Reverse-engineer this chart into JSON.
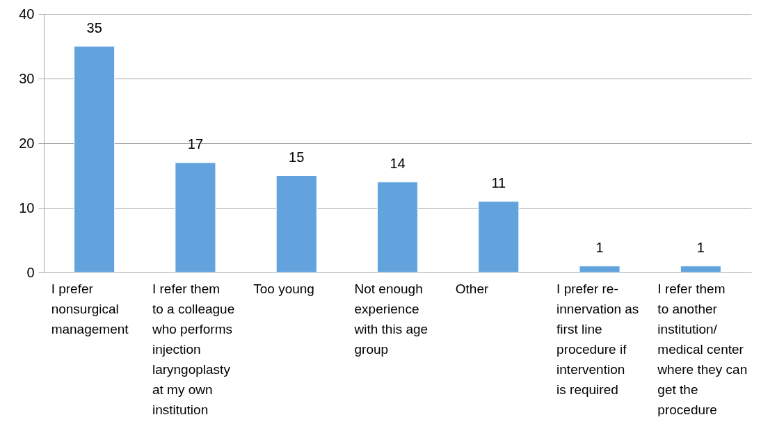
{
  "chart_data": {
    "type": "bar",
    "categories": [
      "I prefer nonsurgical management",
      "I refer them to a colleague who performs injection laryngoplasty at my own institution",
      "Too young",
      "Not enough experience with this age group",
      "Other",
      "I prefer re-innervation as first line procedure if intervention is required",
      "I refer them to another institution/ medical center where they can get the procedure"
    ],
    "values": [
      35,
      17,
      15,
      14,
      11,
      1,
      1
    ],
    "color": "#62a3dd",
    "ylim": [
      0,
      40
    ],
    "yticks": [
      0,
      10,
      20,
      30,
      40
    ],
    "grid": "y",
    "data_labels": true
  }
}
